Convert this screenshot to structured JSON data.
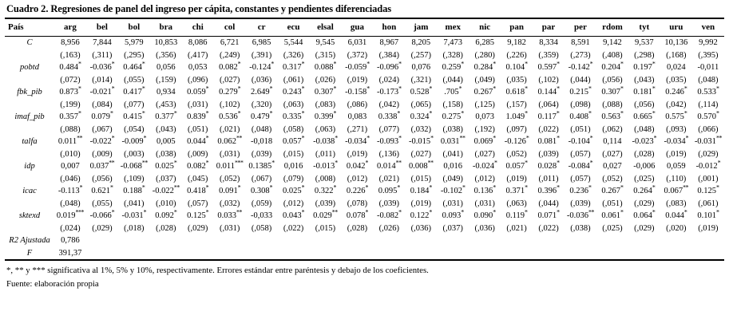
{
  "title": "Cuadro 2. Regresiones de panel del ingreso per cápita, constantes y pendientes diferenciadas",
  "table": {
    "first_col_header": "País",
    "columns": [
      "arg",
      "bel",
      "bol",
      "bra",
      "chi",
      "col",
      "cr",
      "ecu",
      "elsal",
      "gua",
      "hon",
      "jam",
      "mex",
      "nic",
      "pan",
      "par",
      "per",
      "rdom",
      "tyt",
      "uru",
      "ven"
    ],
    "rows": [
      {
        "label": "C",
        "coef": [
          "8,956",
          "7,844",
          "5,979",
          "10,853",
          "8,086",
          "6,721",
          "6,985",
          "5,544",
          "9,545",
          "6,031",
          "8,967",
          "8,205",
          "7,473",
          "6,285",
          "9,182",
          "8,334",
          "8,591",
          "9,142",
          "9,537",
          "10,136",
          "9,992"
        ],
        "se": [
          "(,163)",
          "(,311)",
          "(,295)",
          "(,356)",
          "(,417)",
          "(,249)",
          "(,391)",
          "(,326)",
          "(,315)",
          "(,372)",
          "(,384)",
          "(,257)",
          "(,328)",
          "(,280)",
          "(,226)",
          "(,359)",
          "(,273)",
          "(,408)",
          "(,298)",
          "(,168)",
          "(,395)"
        ]
      },
      {
        "label": "pobtd",
        "coef": [
          "0.484*",
          "-0.036*",
          "0.464*",
          "0,056",
          "0,053",
          "0.082*",
          "-0.124*",
          "0.317*",
          "0.088*",
          "-0.059*",
          "-0.096*",
          "0,076",
          "0.259*",
          "0.284*",
          "0.104*",
          "0.597*",
          "-0.142*",
          "0.204*",
          "0.197*",
          "0,024",
          "-0,011"
        ],
        "se": [
          "(,072)",
          "(,014)",
          "(,055)",
          "(,159)",
          "(,096)",
          "(,027)",
          "(,036)",
          "(,061)",
          "(,026)",
          "(,019)",
          "(,024)",
          "(,321)",
          "(,044)",
          "(,049)",
          "(,035)",
          "(,102)",
          "(,044)",
          "(,056)",
          "(,043)",
          "(,035)",
          "(,048)"
        ]
      },
      {
        "label": "fbk_pib",
        "coef": [
          "0.873*",
          "-0.021*",
          "0.417*",
          "0,934",
          "0.059*",
          "0.279*",
          "2.649*",
          "0.243*",
          "0.307*",
          "-0.158*",
          "-0.173*",
          "0.528*",
          ".705*",
          "0.267*",
          "0.618*",
          "0.144*",
          "0.215*",
          "0.307*",
          "0.181*",
          "0.246*",
          "0.533*"
        ],
        "se": [
          "(,199)",
          "(,084)",
          "(,077)",
          "(,453)",
          "(,031)",
          "(,102)",
          "(,320)",
          "(,063)",
          "(,083)",
          "(,086)",
          "(,042)",
          "(,065)",
          "(,158)",
          "(,125)",
          "(,157)",
          "(,064)",
          "(,098)",
          "(,088)",
          "(,056)",
          "(,042)",
          "(,114)"
        ]
      },
      {
        "label": "imaf_pib",
        "coef": [
          "0.357*",
          "0.079*",
          "0.415*",
          "0.377*",
          "0.839*",
          "0.536*",
          "0.479*",
          "0.335*",
          "0.399*",
          "0,083",
          "0.338*",
          "0.324*",
          "0.275*",
          "0,073",
          "1.049*",
          "0.117*",
          "0.408*",
          "0.563*",
          "0.665*",
          "0.575*",
          "0.570*"
        ],
        "se": [
          "(,088)",
          "(,067)",
          "(,054)",
          "(,043)",
          "(,051)",
          "(,021)",
          "(,048)",
          "(,058)",
          "(,063)",
          "(,271)",
          "(,077)",
          "(,032)",
          "(,038)",
          "(,192)",
          "(,097)",
          "(,022)",
          "(,051)",
          "(,062)",
          "(,048)",
          "(,093)",
          "(,066)"
        ]
      },
      {
        "label": "talfa",
        "coef": [
          "0.011**",
          "-0.022*",
          "-0.009*",
          "0,005",
          "0.044*",
          "0.062**",
          "-0,018",
          "0.057*",
          "-0.038*",
          "-0.034*",
          "-0.093*",
          "-0.015*",
          "0.031**",
          "0.069*",
          "-0.126*",
          "0.081*",
          "-0.104*",
          "0,114",
          "-0.023*",
          "-0.034*",
          "-0.031**"
        ],
        "se": [
          "(,010)",
          "(,009)",
          "(,003)",
          "(,038)",
          "(,009)",
          "(,031)",
          "(,039)",
          "(,015)",
          "(,011)",
          "(,019)",
          "(,136)",
          "(,027)",
          "(,041)",
          "(,027)",
          "(,052)",
          "(,039)",
          "(,057)",
          "(,027)",
          "(,028)",
          "(,019)",
          "(,029)"
        ]
      },
      {
        "label": "idp",
        "coef": [
          "0,007",
          "0.037**",
          "-0.068**",
          "0.025*",
          "0.082*",
          "0.011***",
          "0.1385*",
          "0,016",
          "-0.013*",
          "0.042*",
          "0.014**",
          "0.008**",
          "0,016",
          "-0.024*",
          "0.057*",
          "0.028*",
          "-0.084*",
          "0,027",
          "-0,006",
          "0,059",
          "-0.012*"
        ],
        "se": [
          "(,046)",
          "(,056)",
          "(,109)",
          "(,037)",
          "(,045)",
          "(,052)",
          "(,067)",
          "(,079)",
          "(,008)",
          "(,012)",
          "(,021)",
          "(,015)",
          "(,049)",
          "(,012)",
          "(,019)",
          "(,011)",
          "(,057)",
          "(,052)",
          "(,025)",
          "(,110)",
          "(,001)"
        ]
      },
      {
        "label": "icac",
        "coef": [
          "-0.113*",
          "0.621*",
          "0.188*",
          "-0.022**",
          "0.418*",
          "0.091*",
          "0.308*",
          "0.025*",
          "0.322*",
          "0.226*",
          "0.095*",
          "0.184*",
          "-0.102*",
          "0.136*",
          "0.371*",
          "0.396*",
          "0.236*",
          "0.267*",
          "0.264*",
          "0.067**",
          "0.125*"
        ],
        "se": [
          "(,048)",
          "(,055)",
          "(,041)",
          "(,010)",
          "(,057)",
          "(,032)",
          "(,059)",
          "(,012)",
          "(,039)",
          "(,078)",
          "(,039)",
          "(,019)",
          "(,031)",
          "(,031)",
          "(,063)",
          "(,044)",
          "(,039)",
          "(,051)",
          "(,029)",
          "(,083)",
          "(,061)"
        ]
      },
      {
        "label": "sktexd",
        "coef": [
          "0.019***",
          "-0.066*",
          "-0.031*",
          "0.092*",
          "0.125*",
          "0.033**",
          "-0,033",
          "0.043*",
          "0.029**",
          "0.078*",
          "-0.082*",
          "0.122*",
          "0.093*",
          "0.090*",
          "0.119*",
          "0.071*",
          "-0.036**",
          "0.061*",
          "0.064*",
          "0.044*",
          "0.101*"
        ],
        "se": [
          "(,024)",
          "(,029)",
          "(,018)",
          "(,028)",
          "(,029)",
          "(,031)",
          "(,058)",
          "(,022)",
          "(,015)",
          "(,028)",
          "(,026)",
          "(,036)",
          "(,037)",
          "(,036)",
          "(,021)",
          "(,022)",
          "(,038)",
          "(,025)",
          "(,029)",
          "(,020)",
          "(,019)"
        ]
      }
    ],
    "summary_rows": [
      {
        "label": "R2 Ajustada",
        "value": "0,786"
      },
      {
        "label": "F",
        "value": "391,37"
      }
    ]
  },
  "footnotes": {
    "significance": "*, ** y *** significativa al 1%, 5% y 10%, respectivamente. Errores estándar entre paréntesis y debajo de los coeficientes.",
    "source": "Fuente: elaboración propia"
  }
}
